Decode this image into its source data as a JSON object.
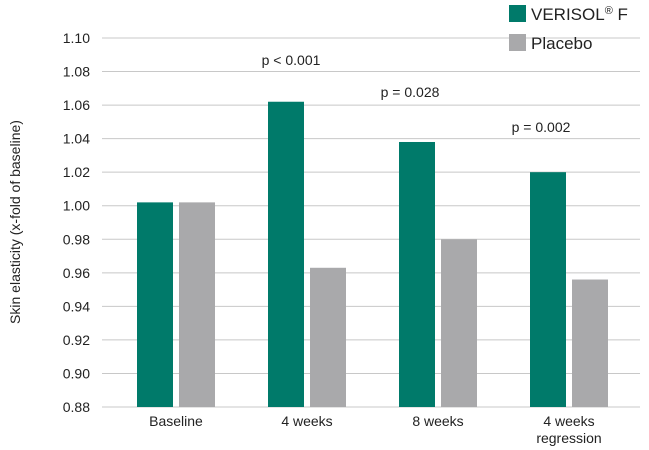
{
  "chart_data": {
    "type": "bar",
    "ylabel": "Skin elasticity (x-fold of baseline)",
    "ylim": [
      0.88,
      1.1
    ],
    "yticks": [
      "0.88",
      "0.90",
      "0.92",
      "0.94",
      "0.96",
      "0.98",
      "1.00",
      "1.02",
      "1.04",
      "1.06",
      "1.08",
      "1.10"
    ],
    "categories": [
      [
        "Baseline"
      ],
      [
        "4 weeks"
      ],
      [
        "8 weeks"
      ],
      [
        "4 weeks",
        "regression"
      ]
    ],
    "series": [
      {
        "name": "VERISOL® F",
        "color": "#007a6a",
        "values": [
          1.002,
          1.062,
          1.038,
          1.02
        ]
      },
      {
        "name": "Placebo",
        "color": "#a9a9ab",
        "values": [
          1.002,
          0.963,
          0.98,
          0.956
        ]
      }
    ],
    "annotations": [
      "p < 0.001",
      "p = 0.028",
      "p = 0.002"
    ],
    "legend": {
      "placement": "top-right",
      "entries": [
        "VERISOL® F",
        "Placebo"
      ]
    },
    "grid": {
      "horizontal": true
    }
  }
}
